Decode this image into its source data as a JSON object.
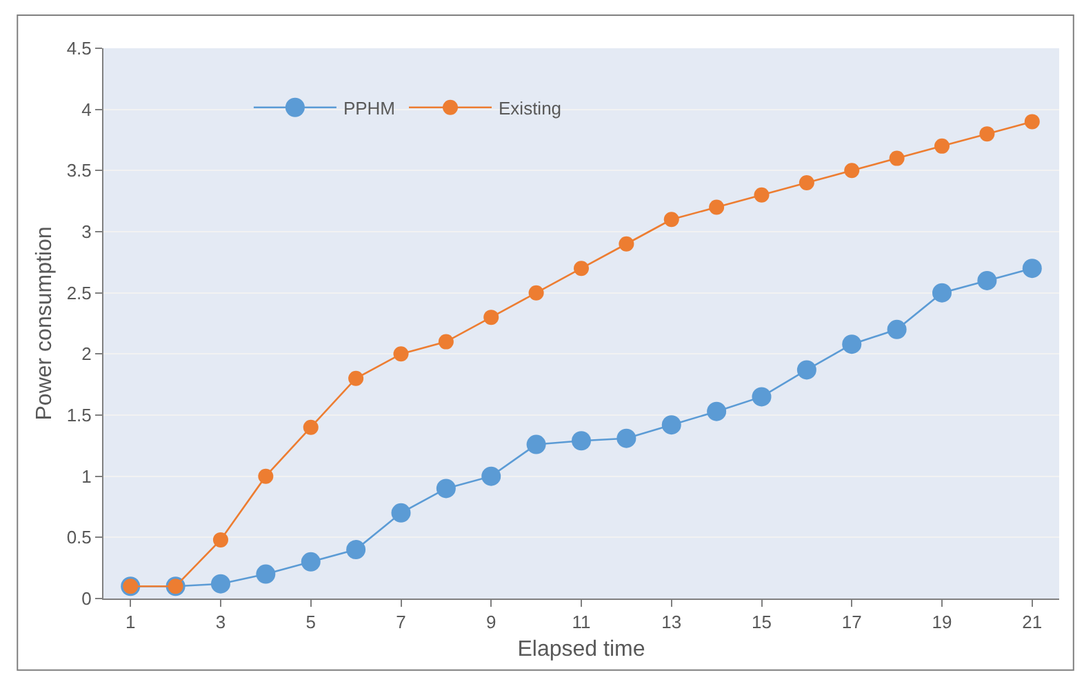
{
  "chart_data": {
    "type": "line",
    "xlabel": "Elapsed time",
    "ylabel": "Power consumption",
    "x": [
      1,
      2,
      3,
      4,
      5,
      6,
      7,
      8,
      9,
      10,
      11,
      12,
      13,
      14,
      15,
      16,
      17,
      18,
      19,
      20,
      21
    ],
    "series": [
      {
        "name": "PPHM",
        "color": "#5b9bd5",
        "values": [
          0.1,
          0.1,
          0.12,
          0.2,
          0.3,
          0.4,
          0.7,
          0.9,
          1.0,
          1.26,
          1.29,
          1.31,
          1.42,
          1.53,
          1.65,
          1.87,
          2.08,
          2.2,
          2.5,
          2.6,
          2.7
        ]
      },
      {
        "name": "Existing",
        "color": "#ed7d31",
        "values": [
          0.1,
          0.1,
          0.48,
          1.0,
          1.4,
          1.8,
          2.0,
          2.1,
          2.3,
          2.5,
          2.7,
          2.9,
          3.1,
          3.2,
          3.3,
          3.4,
          3.5,
          3.6,
          3.7,
          3.8,
          3.9
        ]
      }
    ],
    "xlim": [
      0.4,
      21.6
    ],
    "xticks": [
      1,
      3,
      5,
      7,
      9,
      11,
      13,
      15,
      17,
      19,
      21
    ],
    "ylim": [
      0,
      4.5
    ],
    "yticks": [
      0,
      0.5,
      1,
      1.5,
      2,
      2.5,
      3,
      3.5,
      4,
      4.5
    ],
    "grid": "y",
    "legend": "top left",
    "marker": "circle",
    "line_style": "solid"
  }
}
